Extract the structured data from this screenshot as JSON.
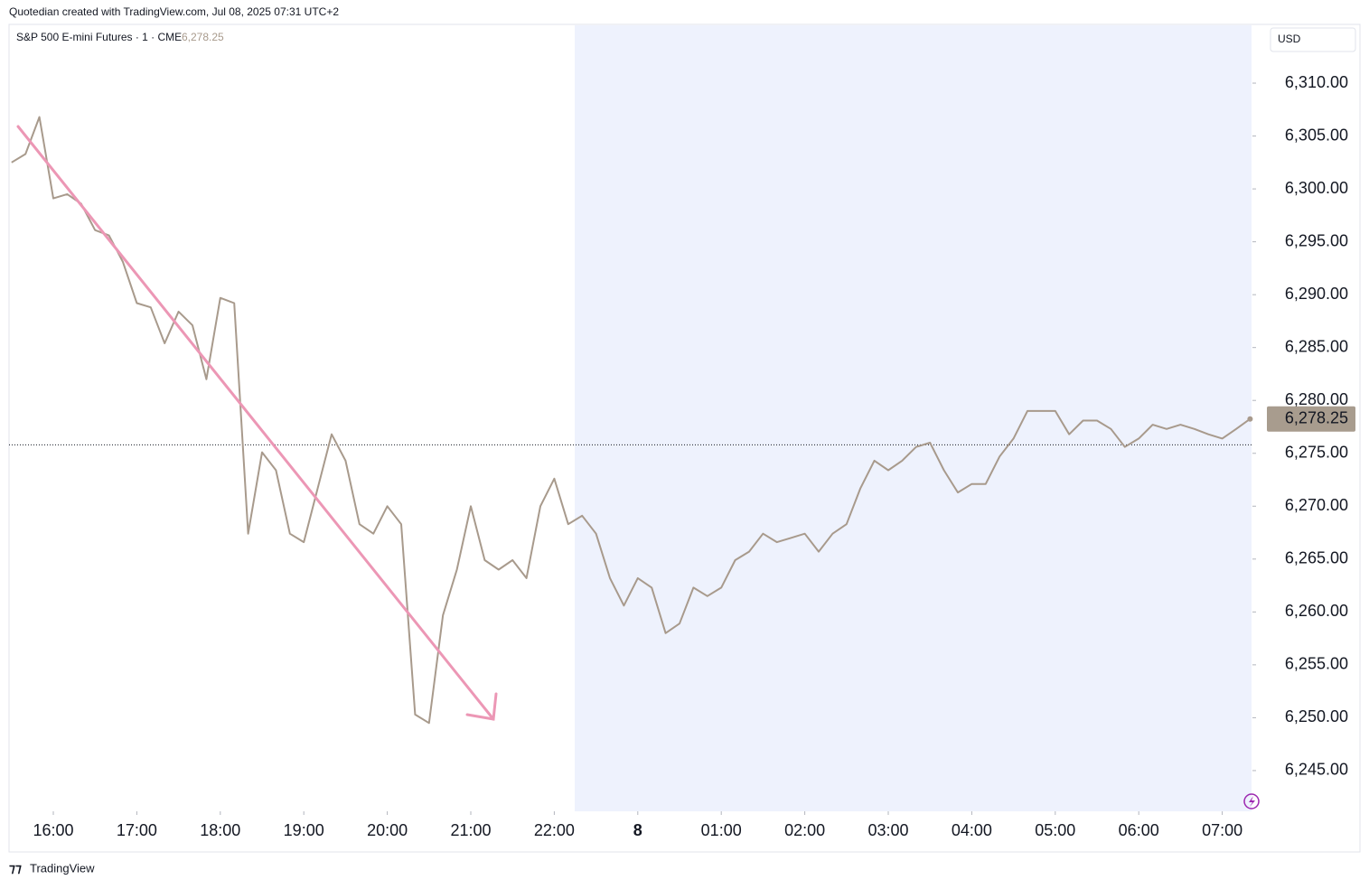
{
  "header": {
    "credit": "Quotedian created with TradingView.com, Jul 08, 2025 07:31 UTC+2"
  },
  "footer": {
    "brand": "TradingView"
  },
  "chart_data": {
    "type": "line",
    "symbol": "S&P 500 E-mini Futures · 1 · CME",
    "currency": "USD",
    "last_price": {
      "value": 6278.25,
      "label": "6,278.25"
    },
    "reference_line": 6275.8,
    "color": "#a89a8c",
    "x": [
      "15:30",
      "15:40",
      "15:50",
      "16:00",
      "16:10",
      "16:20",
      "16:30",
      "16:40",
      "16:50",
      "17:00",
      "17:10",
      "17:20",
      "17:30",
      "17:40",
      "17:50",
      "18:00",
      "18:10",
      "18:20",
      "18:30",
      "18:40",
      "18:50",
      "19:00",
      "19:10",
      "19:20",
      "19:30",
      "19:40",
      "19:50",
      "20:00",
      "20:10",
      "20:20",
      "20:30",
      "20:40",
      "20:50",
      "21:00",
      "21:10",
      "21:20",
      "21:30",
      "21:40",
      "21:50",
      "22:00",
      "22:10",
      "22:20",
      "22:30",
      "22:40",
      "22:50",
      "00:00",
      "00:10",
      "00:20",
      "00:30",
      "00:40",
      "00:50",
      "01:00",
      "01:10",
      "01:20",
      "01:30",
      "01:40",
      "01:50",
      "02:00",
      "02:10",
      "02:20",
      "02:30",
      "02:40",
      "02:50",
      "03:00",
      "03:10",
      "03:20",
      "03:30",
      "03:40",
      "03:50",
      "04:00",
      "04:10",
      "04:20",
      "04:30",
      "04:40",
      "04:50",
      "05:00",
      "05:10",
      "05:20",
      "05:30",
      "05:40",
      "05:50",
      "06:00",
      "06:10",
      "06:20",
      "06:30",
      "06:40",
      "06:50",
      "07:00",
      "07:10",
      "07:20"
    ],
    "values": [
      6302.5,
      6303.3,
      6306.8,
      6299.1,
      6299.5,
      6298.6,
      6296.1,
      6295.6,
      6293.1,
      6289.2,
      6288.8,
      6285.4,
      6288.4,
      6287.1,
      6282.0,
      6289.7,
      6289.2,
      6267.4,
      6275.1,
      6273.4,
      6267.4,
      6266.6,
      6271.7,
      6276.8,
      6274.3,
      6268.3,
      6267.4,
      6270.0,
      6268.3,
      6250.3,
      6249.5,
      6259.7,
      6264.0,
      6270.0,
      6264.9,
      6264.0,
      6264.9,
      6263.2,
      6270.0,
      6272.6,
      6268.3,
      6269.1,
      6267.4,
      6263.2,
      6260.6,
      6263.2,
      6262.3,
      6258.0,
      6258.9,
      6262.3,
      6261.5,
      6262.3,
      6264.9,
      6265.7,
      6267.4,
      6266.6,
      6267.0,
      6267.4,
      6265.7,
      6267.4,
      6268.3,
      6271.7,
      6274.3,
      6273.4,
      6274.3,
      6275.6,
      6276.0,
      6273.4,
      6271.3,
      6272.1,
      6272.1,
      6274.7,
      6276.4,
      6279.0,
      6279.0,
      6279.0,
      6276.8,
      6278.1,
      6278.1,
      6277.3,
      6275.6,
      6276.4,
      6277.7,
      6277.3,
      6277.7,
      6277.3,
      6276.8,
      6276.4,
      6277.3,
      6278.25
    ],
    "ylim": [
      6241.15,
      6315.47
    ],
    "yticks": [
      {
        "value": 6245,
        "label": "6,245.00"
      },
      {
        "value": 6250,
        "label": "6,250.00"
      },
      {
        "value": 6255,
        "label": "6,255.00"
      },
      {
        "value": 6260,
        "label": "6,260.00"
      },
      {
        "value": 6265,
        "label": "6,265.00"
      },
      {
        "value": 6270,
        "label": "6,270.00"
      },
      {
        "value": 6275,
        "label": "6,275.00"
      },
      {
        "value": 6280,
        "label": "6,280.00"
      },
      {
        "value": 6285,
        "label": "6,285.00"
      },
      {
        "value": 6290,
        "label": "6,290.00"
      },
      {
        "value": 6295,
        "label": "6,295.00"
      },
      {
        "value": 6300,
        "label": "6,300.00"
      },
      {
        "value": 6305,
        "label": "6,305.00"
      },
      {
        "value": 6310,
        "label": "6,310.00"
      }
    ],
    "xticks": [
      "16:00",
      "17:00",
      "18:00",
      "19:00",
      "20:00",
      "21:00",
      "22:00",
      {
        "value": "00:00",
        "label": "8"
      },
      "01:00",
      "02:00",
      "03:00",
      "04:00",
      "05:00",
      "06:00",
      "07:00"
    ]
  }
}
